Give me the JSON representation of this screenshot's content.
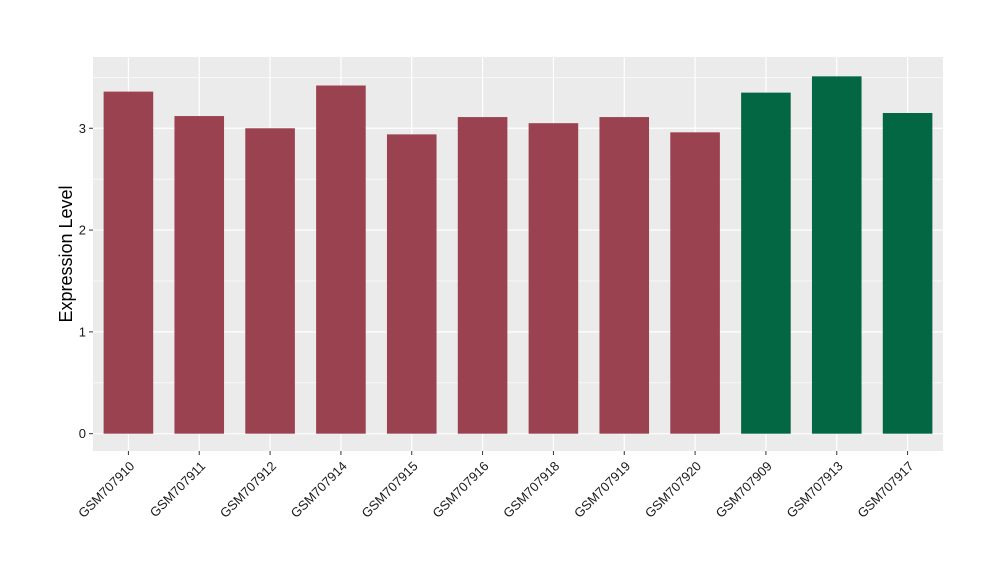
{
  "chart_data": {
    "type": "bar",
    "title": "",
    "xlabel": "",
    "ylabel": "Expression Level",
    "ylim": [
      -0.17,
      3.7
    ],
    "yticks": [
      0,
      1,
      2,
      3
    ],
    "grid": true,
    "categories": [
      "GSM707910",
      "GSM707911",
      "GSM707912",
      "GSM707914",
      "GSM707915",
      "GSM707916",
      "GSM707918",
      "GSM707919",
      "GSM707920",
      "GSM707909",
      "GSM707913",
      "GSM707917"
    ],
    "values": [
      3.36,
      3.12,
      3.0,
      3.42,
      2.94,
      3.11,
      3.05,
      3.11,
      2.96,
      3.35,
      3.51,
      3.15
    ],
    "groups": [
      {
        "color": "#9a4250",
        "members": [
          "GSM707910",
          "GSM707911",
          "GSM707912",
          "GSM707914",
          "GSM707915",
          "GSM707916",
          "GSM707918",
          "GSM707919",
          "GSM707920"
        ]
      },
      {
        "color": "#046744",
        "members": [
          "GSM707909",
          "GSM707913",
          "GSM707917"
        ]
      }
    ],
    "panel_background": "#ebebeb",
    "grid_color": "#ffffff"
  }
}
